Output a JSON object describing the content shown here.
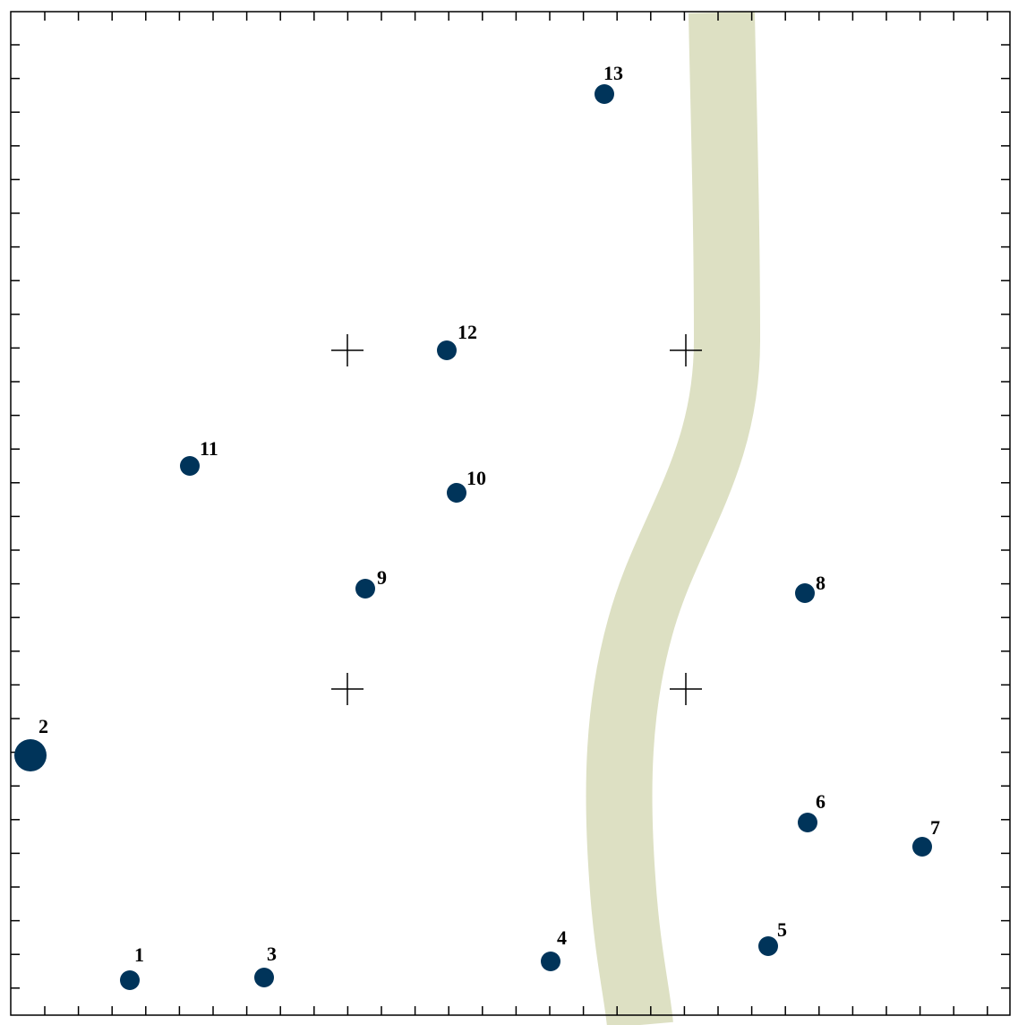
{
  "colors": {
    "point": "#00345a",
    "river": "#dde0c3",
    "frame": "#000000",
    "background": "#ffffff"
  },
  "points": [
    {
      "id": "1",
      "label": "1",
      "size": "small"
    },
    {
      "id": "2",
      "label": "2",
      "size": "large"
    },
    {
      "id": "3",
      "label": "3",
      "size": "small"
    },
    {
      "id": "4",
      "label": "4",
      "size": "small"
    },
    {
      "id": "5",
      "label": "5",
      "size": "small"
    },
    {
      "id": "6",
      "label": "6",
      "size": "small"
    },
    {
      "id": "7",
      "label": "7",
      "size": "small"
    },
    {
      "id": "8",
      "label": "8",
      "size": "small"
    },
    {
      "id": "9",
      "label": "9",
      "size": "small"
    },
    {
      "id": "10",
      "label": "10",
      "size": "small"
    },
    {
      "id": "11",
      "label": "11",
      "size": "small"
    },
    {
      "id": "12",
      "label": "12",
      "size": "small"
    },
    {
      "id": "13",
      "label": "13",
      "size": "small"
    }
  ],
  "reference_marks": [
    "cross-top-left",
    "cross-top-right",
    "cross-bottom-left",
    "cross-bottom-right"
  ],
  "features": [
    "river-band"
  ]
}
